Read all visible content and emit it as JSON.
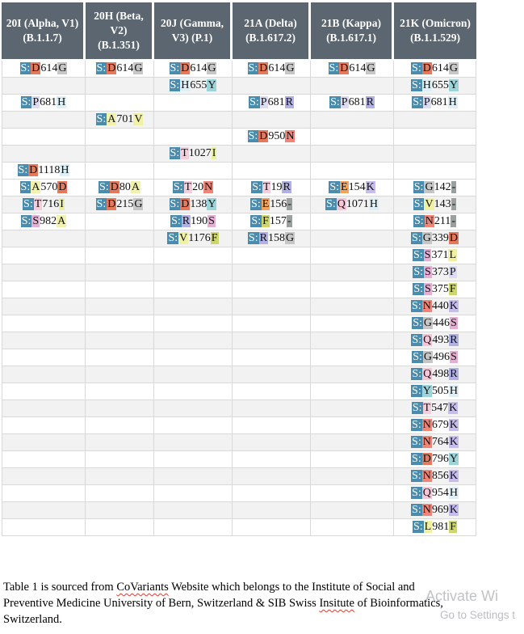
{
  "table": {
    "gene_prefix": "S:",
    "header_bg": "#5b6670",
    "gene_tag_bg": "#4a8cad",
    "shaded_row_bg": "#f2f2f2",
    "grid_color": "#d9d9d9",
    "columns": [
      {
        "id": "alpha",
        "label": "20I (Alpha, V1) (B.1.1.7)"
      },
      {
        "id": "beta",
        "label": "20H (Beta, V2) (B.1.351)"
      },
      {
        "id": "gamma",
        "label": "20J (Gamma, V3) (P.1)"
      },
      {
        "id": "delta",
        "label": "21A (Delta) (B.1.617.2)"
      },
      {
        "id": "kappa",
        "label": "21B (Kappa) (B.1.617.1)"
      },
      {
        "id": "omicron",
        "label": "21K (Omicron) (B.1.1.529)"
      }
    ],
    "aa_colors": {
      "A": "#f2f2af",
      "V": "#f1f1a6",
      "L": "#f0f09e",
      "I": "#e9f19c",
      "F": "#ccd669",
      "G": "#c6c6c6",
      "D": "#e4795b",
      "E": "#f2a35c",
      "N": "#ef8577",
      "Q": "#f6c6d8",
      "T": "#f5cede",
      "S": "#e6aed3",
      "K": "#c7bdec",
      "R": "#b1b1e6",
      "H": "#def0f5",
      "Y": "#9cd4d9",
      "P": "#dcdcf2",
      "-": "#9aa0a0"
    },
    "rows": [
      {
        "shaded": false,
        "cells": [
          "D614G",
          "D614G",
          "D614G",
          "D614G",
          "D614G",
          "D614G"
        ]
      },
      {
        "shaded": true,
        "cells": [
          null,
          null,
          "H655Y",
          null,
          null,
          "H655Y"
        ]
      },
      {
        "shaded": false,
        "cells": [
          "P681H",
          null,
          null,
          "P681R",
          "P681R",
          "P681H"
        ]
      },
      {
        "shaded": true,
        "cells": [
          null,
          "A701V",
          null,
          null,
          null,
          null
        ]
      },
      {
        "shaded": false,
        "cells": [
          null,
          null,
          null,
          "D950N",
          null,
          null
        ]
      },
      {
        "shaded": true,
        "cells": [
          null,
          null,
          "T1027I",
          null,
          null,
          null
        ]
      },
      {
        "shaded": false,
        "cells": [
          "D1118H",
          null,
          null,
          null,
          null,
          null
        ]
      },
      {
        "shaded": false,
        "cells": [
          "A570D",
          "D80A",
          "T20N",
          "T19R",
          "E154K",
          "G142-"
        ]
      },
      {
        "shaded": true,
        "cells": [
          "T716I",
          "D215G",
          "D138Y",
          "E156-",
          "Q1071H",
          "V143-"
        ]
      },
      {
        "shaded": false,
        "cells": [
          "S982A",
          null,
          "R190S",
          "F157-",
          null,
          "N211-"
        ]
      },
      {
        "shaded": true,
        "cells": [
          null,
          null,
          "V1176F",
          "R158G",
          null,
          "G339D"
        ]
      },
      {
        "shaded": false,
        "cells": [
          null,
          null,
          null,
          null,
          null,
          "S371L"
        ]
      },
      {
        "shaded": true,
        "cells": [
          null,
          null,
          null,
          null,
          null,
          "S373P"
        ]
      },
      {
        "shaded": false,
        "cells": [
          null,
          null,
          null,
          null,
          null,
          "S375F"
        ]
      },
      {
        "shaded": true,
        "cells": [
          null,
          null,
          null,
          null,
          null,
          "N440K"
        ]
      },
      {
        "shaded": false,
        "cells": [
          null,
          null,
          null,
          null,
          null,
          "G446S"
        ]
      },
      {
        "shaded": true,
        "cells": [
          null,
          null,
          null,
          null,
          null,
          "Q493R"
        ]
      },
      {
        "shaded": false,
        "cells": [
          null,
          null,
          null,
          null,
          null,
          "G496S"
        ]
      },
      {
        "shaded": true,
        "cells": [
          null,
          null,
          null,
          null,
          null,
          "Q498R"
        ]
      },
      {
        "shaded": false,
        "cells": [
          null,
          null,
          null,
          null,
          null,
          "Y505H"
        ]
      },
      {
        "shaded": true,
        "cells": [
          null,
          null,
          null,
          null,
          null,
          "T547K"
        ]
      },
      {
        "shaded": false,
        "cells": [
          null,
          null,
          null,
          null,
          null,
          "N679K"
        ]
      },
      {
        "shaded": true,
        "cells": [
          null,
          null,
          null,
          null,
          null,
          "N764K"
        ]
      },
      {
        "shaded": false,
        "cells": [
          null,
          null,
          null,
          null,
          null,
          "D796Y"
        ]
      },
      {
        "shaded": true,
        "cells": [
          null,
          null,
          null,
          null,
          null,
          "N856K"
        ]
      },
      {
        "shaded": false,
        "cells": [
          null,
          null,
          null,
          null,
          null,
          "Q954H"
        ]
      },
      {
        "shaded": true,
        "cells": [
          null,
          null,
          null,
          null,
          null,
          "N969K"
        ]
      },
      {
        "shaded": false,
        "cells": [
          null,
          null,
          null,
          null,
          null,
          "L981F"
        ]
      }
    ]
  },
  "caption": {
    "lines": [
      [
        {
          "text": "Table 1 is sourced from "
        },
        {
          "text": "CoVariants",
          "misspelled": true
        },
        {
          "text": " Website which belongs to the Institute of Social and"
        }
      ],
      [
        {
          "text": "Preventive Medicine University of Bern, Switzerland & SIB Swiss "
        },
        {
          "text": "Insitute",
          "misspelled": true
        },
        {
          "text": " of Bioinformatics,"
        }
      ],
      [
        {
          "text": "Switzerland."
        }
      ]
    ]
  },
  "watermark": {
    "line1": "Activate Wi",
    "line2": "Go to Settings t"
  }
}
